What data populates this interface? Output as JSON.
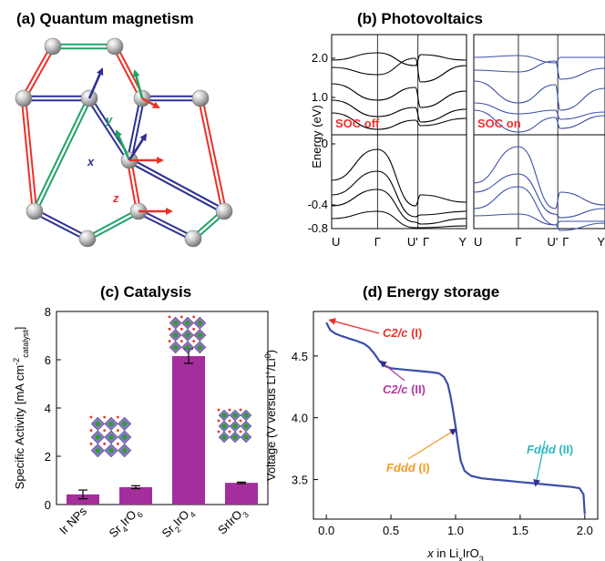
{
  "panels": {
    "a": {
      "title": "(a)  Quantum magnetism",
      "labels": [
        "x",
        "y",
        "z"
      ]
    },
    "b": {
      "title": "(b)  Photovoltaics"
    },
    "c": {
      "title": "(c)  Catalysis"
    },
    "d": {
      "title": "(d)  Energy storage"
    }
  },
  "chart_data": [
    {
      "type": "diagram",
      "panel": "a",
      "title": "(a)  Quantum magnetism",
      "bond_labels": [
        "x",
        "y",
        "z"
      ],
      "colors": {
        "x": "#2e3192",
        "y": "#21a366",
        "z": "#e8322b",
        "atom": "#b0b0b0"
      }
    },
    {
      "type": "line",
      "panel": "b",
      "title": "(b)  Photovoltaics",
      "ylabel": "Energy (eV)",
      "ylim": [
        -0.8,
        2.4
      ],
      "yticks": [
        "-0.8",
        "-0.4",
        "0",
        "1.0",
        "2.0"
      ],
      "subpanels": [
        {
          "label": "SOC off",
          "color": "#000000",
          "label_color": "#e8322b",
          "xticks": [
            "U",
            "Γ",
            "U'",
            "Γ",
            "Y"
          ]
        },
        {
          "label": "SOC on",
          "color": "#3a4fa8",
          "label_color": "#e8322b",
          "xticks": [
            "U",
            "Γ",
            "U'",
            "Γ",
            "Y"
          ]
        }
      ]
    },
    {
      "type": "bar",
      "panel": "c",
      "title": "(c)  Catalysis",
      "ylabel_main": "Specific Activity [mA cm",
      "ylabel_sup": "-2",
      "ylabel_sub": "catalyst",
      "ylabel_end": "]",
      "categories": [
        {
          "base": "Ir NPs",
          "parts": [
            {
              "t": "Ir NPs",
              "s": "n"
            }
          ]
        },
        {
          "base": "Sr4IrO6",
          "parts": [
            {
              "t": "Sr",
              "s": "n"
            },
            {
              "t": "4",
              "s": "sub"
            },
            {
              "t": "IrO",
              "s": "n"
            },
            {
              "t": "6",
              "s": "sub"
            }
          ]
        },
        {
          "base": "Sr2IrO4",
          "parts": [
            {
              "t": "Sr",
              "s": "n"
            },
            {
              "t": "2",
              "s": "sub"
            },
            {
              "t": "IrO",
              "s": "n"
            },
            {
              "t": "4",
              "s": "sub"
            }
          ]
        },
        {
          "base": "SrIrO3",
          "parts": [
            {
              "t": "SrIrO",
              "s": "n"
            },
            {
              "t": "3",
              "s": "sub"
            }
          ]
        }
      ],
      "values": [
        0.42,
        0.72,
        6.15,
        0.9
      ],
      "errors": [
        0.18,
        0.06,
        0.3,
        0.03
      ],
      "ylim": [
        0,
        8
      ],
      "yticks": [
        0,
        2,
        4,
        6,
        8
      ],
      "bar_color": "#a32e9c"
    },
    {
      "type": "line",
      "panel": "d",
      "title": "(d)  Energy storage",
      "xlabel_main": "x",
      "xlabel_rest": " in Li",
      "xlabel_sub": "x",
      "xlabel_end": "IrO",
      "xlabel_sub2": "3",
      "ylabel_main": "Voltage (V versus Li",
      "ylabel_sup": "+",
      "ylabel_mid": "/Li",
      "ylabel_sup2": "0",
      "ylabel_end": ")",
      "xlim": [
        -0.1,
        2.1
      ],
      "ylim": [
        3.18,
        4.86
      ],
      "xticks": [
        0.0,
        0.5,
        1.0,
        1.5,
        2.0
      ],
      "xtick_labels": [
        "0.0",
        "0.5",
        "1.0",
        "1.5",
        "2.0"
      ],
      "yticks": [
        3.5,
        4.0,
        4.5
      ],
      "ytick_labels": [
        "3.5",
        "4.0",
        "4.5"
      ],
      "series": [
        {
          "color": "#3a4fa8",
          "x": [
            0.0,
            0.03,
            0.07,
            0.12,
            0.18,
            0.24,
            0.29,
            0.33,
            0.37,
            0.41,
            0.45,
            0.5,
            0.6,
            0.7,
            0.8,
            0.87,
            0.91,
            0.94,
            0.96,
            0.98,
            1.0,
            1.02,
            1.04,
            1.07,
            1.12,
            1.2,
            1.3,
            1.4,
            1.5,
            1.6,
            1.7,
            1.8,
            1.9,
            1.96,
            1.99,
            2.0
          ],
          "y": [
            4.77,
            4.71,
            4.68,
            4.66,
            4.64,
            4.62,
            4.6,
            4.57,
            4.52,
            4.46,
            4.42,
            4.4,
            4.39,
            4.38,
            4.37,
            4.36,
            4.33,
            4.27,
            4.18,
            4.06,
            3.93,
            3.78,
            3.65,
            3.57,
            3.53,
            3.51,
            3.5,
            3.49,
            3.48,
            3.47,
            3.46,
            3.45,
            3.44,
            3.43,
            3.38,
            3.22
          ]
        }
      ],
      "annotations": [
        {
          "text": "C2/c",
          "suffix": " (I)",
          "color": "#e8322b",
          "x": 0.0,
          "y": 4.79
        },
        {
          "text": "C2/c",
          "suffix": " (II)",
          "color": "#b1399f",
          "x": 0.42,
          "y": 4.47
        },
        {
          "text": "Fddd",
          "suffix": " (I)",
          "color": "#f39c23",
          "x": 1.0,
          "y": 3.92
        },
        {
          "text": "Fddd",
          "suffix": " (II)",
          "color": "#2cb8c0",
          "x": 1.62,
          "y": 3.47
        }
      ]
    }
  ]
}
